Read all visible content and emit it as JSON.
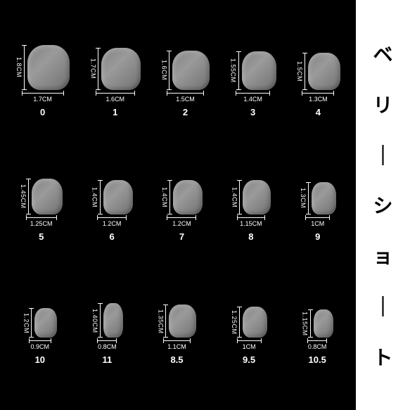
{
  "title_chars": [
    "ベ",
    "リ",
    "｜",
    "シ",
    "ョ",
    "｜",
    "ト"
  ],
  "rows": [
    [
      {
        "id": "0",
        "h": "1.8CM",
        "w": "1.7CM",
        "nh": 64,
        "nw": 60
      },
      {
        "id": "1",
        "h": "1.7CM",
        "w": "1.6CM",
        "nh": 60,
        "nw": 56
      },
      {
        "id": "2",
        "h": "1.6CM",
        "w": "1.5CM",
        "nh": 56,
        "nw": 53
      },
      {
        "id": "3",
        "h": "1.55CM",
        "w": "1.4CM",
        "nh": 55,
        "nw": 49
      },
      {
        "id": "4",
        "h": "1.5CM",
        "w": "1.3CM",
        "nh": 53,
        "nw": 46
      }
    ],
    [
      {
        "id": "5",
        "h": "1.45CM",
        "w": "1.25CM",
        "nh": 51,
        "nw": 44
      },
      {
        "id": "6",
        "h": "1.4CM",
        "w": "1.2CM",
        "nh": 49,
        "nw": 42
      },
      {
        "id": "7",
        "h": "1.4CM",
        "w": "1.2CM",
        "nh": 49,
        "nw": 42
      },
      {
        "id": "8",
        "h": "1.4CM",
        "w": "1.15CM",
        "nh": 49,
        "nw": 40
      },
      {
        "id": "9",
        "h": "1.3CM",
        "w": "1CM",
        "nh": 46,
        "nw": 35
      }
    ],
    [
      {
        "id": "10",
        "h": "1.2CM",
        "w": "0.9CM",
        "nh": 42,
        "nw": 32
      },
      {
        "id": "11",
        "h": "1.40CM",
        "w": "0.8CM",
        "nh": 49,
        "nw": 28
      },
      {
        "id": "8.5",
        "h": "1.35CM",
        "w": "1.1CM",
        "nh": 47,
        "nw": 39
      },
      {
        "id": "9.5",
        "h": "1.25CM",
        "w": "1CM",
        "nh": 44,
        "nw": 35
      },
      {
        "id": "10.5",
        "h": "1.15CM",
        "w": "0.8CM",
        "nh": 40,
        "nw": 28
      }
    ]
  ]
}
